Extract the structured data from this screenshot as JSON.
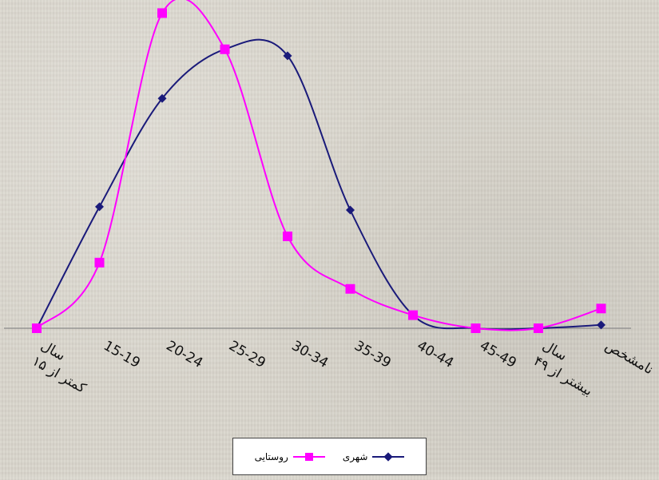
{
  "chart_data": {
    "type": "line",
    "title": "",
    "xlabel": "",
    "ylabel": "",
    "categories": [
      "کمتر از ۱۵ سال",
      "15-19",
      "20-24",
      "25-29",
      "30-34",
      "35-39",
      "40-44",
      "45-49",
      "بیشتر از ۴۹ سال",
      "نامشخص"
    ],
    "series": [
      {
        "name": "شهری",
        "color": "#1a1a7a",
        "marker": "diamond",
        "values": [
          0,
          37,
          70,
          85,
          83,
          36,
          4,
          0,
          0,
          1
        ]
      },
      {
        "name": "روستایی",
        "color": "#ff00ff",
        "marker": "square",
        "values": [
          0,
          20,
          96,
          85,
          28,
          12,
          4,
          0,
          0,
          6
        ]
      }
    ],
    "ylim": [
      0,
      100
    ],
    "y_axis_visible": false,
    "smooth": true,
    "grid": false,
    "legend_position": "bottom"
  }
}
